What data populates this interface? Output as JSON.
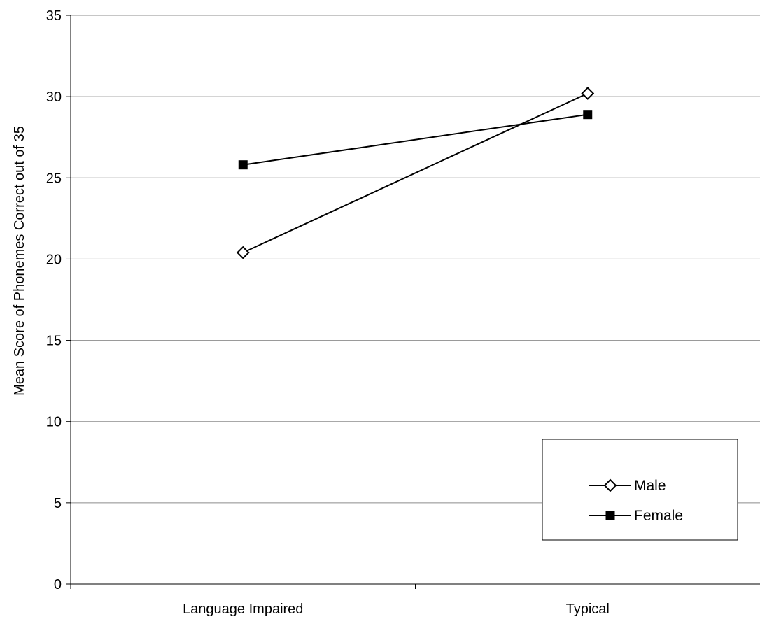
{
  "chart_data": {
    "type": "line",
    "title": "",
    "xlabel": "",
    "ylabel": "Mean Score of Phonemes Correct out of 35",
    "categories": [
      "Language Impaired",
      "Typical"
    ],
    "ylim": [
      0,
      35
    ],
    "yticks": [
      0,
      5,
      10,
      15,
      20,
      25,
      30,
      35
    ],
    "grid": true,
    "legend_position": "bottom-right",
    "series": [
      {
        "name": "Male",
        "values": [
          20.4,
          30.2
        ],
        "marker": "open-diamond",
        "color": "#000000"
      },
      {
        "name": "Female",
        "values": [
          25.8,
          28.9
        ],
        "marker": "filled-square",
        "color": "#000000"
      }
    ]
  }
}
